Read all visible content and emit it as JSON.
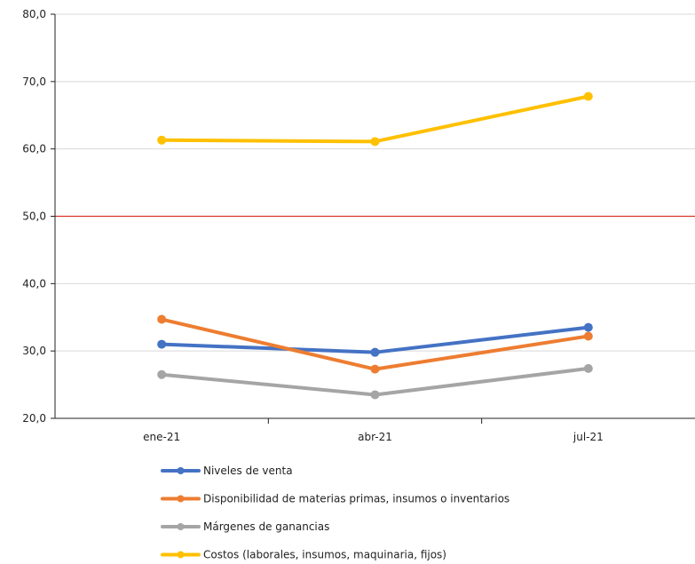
{
  "chart_data": {
    "type": "line",
    "categories": [
      "ene-21",
      "abr-21",
      "jul-21"
    ],
    "ylim": [
      20,
      80
    ],
    "y_ticks": [
      "20,0",
      "30,0",
      "40,0",
      "50,0",
      "60,0",
      "70,0",
      "80,0"
    ],
    "grid": true,
    "legend_position": "bottom",
    "reference_line": {
      "value": 50,
      "color": "#d9342b"
    },
    "series": [
      {
        "name": "Niveles de venta",
        "color": "#4472c4",
        "values": [
          31.0,
          29.8,
          33.5
        ]
      },
      {
        "name": "Disponibilidad de materias primas, insumos o inventarios",
        "color": "#ed7d31",
        "values": [
          34.7,
          27.3,
          32.2
        ]
      },
      {
        "name": "Márgenes de ganancias",
        "color": "#a5a5a5",
        "values": [
          26.5,
          23.5,
          27.4
        ]
      },
      {
        "name": "Costos (laborales, insumos, maquinaria, fijos)",
        "color": "#ffc000",
        "values": [
          61.3,
          61.1,
          67.8
        ]
      }
    ]
  }
}
